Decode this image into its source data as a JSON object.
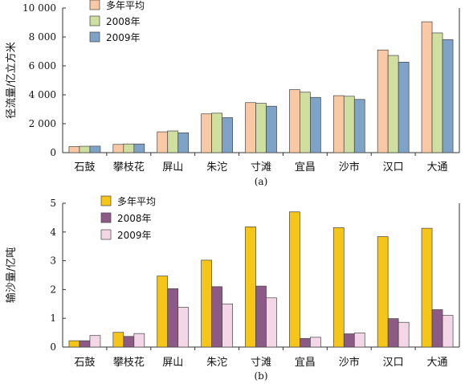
{
  "chart_data": [
    {
      "type": "bar",
      "panel_label": "(a)",
      "ylabel": "径流量/亿立方米",
      "ylim": [
        0,
        10000
      ],
      "yticks": [
        0,
        2000,
        4000,
        6000,
        8000,
        10000
      ],
      "ytick_labels": [
        "0",
        "2 000",
        "4 000",
        "6 000",
        "8 000",
        "10 000"
      ],
      "categories": [
        "石鼓",
        "攀枝花",
        "屏山",
        "朱沱",
        "寸滩",
        "宜昌",
        "沙市",
        "汉口",
        "大通"
      ],
      "legend_position": "top-left",
      "series": [
        {
          "name": "多年平均",
          "color": "#f9c9a5",
          "values": [
            420,
            570,
            1440,
            2680,
            3460,
            4360,
            3940,
            7100,
            9050
          ]
        },
        {
          "name": "2008年",
          "color": "#cfdfa0",
          "values": [
            440,
            600,
            1500,
            2730,
            3410,
            4180,
            3900,
            6720,
            8280
          ]
        },
        {
          "name": "2009年",
          "color": "#7fa3c6",
          "values": [
            450,
            600,
            1370,
            2420,
            3210,
            3820,
            3680,
            6260,
            7820
          ]
        }
      ]
    },
    {
      "type": "bar",
      "panel_label": "(b)",
      "ylabel": "输沙量/亿吨",
      "ylim": [
        0,
        5
      ],
      "yticks": [
        0,
        1,
        2,
        3,
        4,
        5
      ],
      "ytick_labels": [
        "0",
        "1",
        "2",
        "3",
        "4",
        "5"
      ],
      "categories": [
        "石鼓",
        "攀枝花",
        "屏山",
        "朱沱",
        "寸滩",
        "宜昌",
        "沙市",
        "汉口",
        "大通"
      ],
      "legend_position": "top-left",
      "series": [
        {
          "name": "多年平均",
          "color": "#f5c518",
          "values": [
            0.22,
            0.51,
            2.47,
            3.02,
            4.18,
            4.7,
            4.15,
            3.84,
            4.13
          ]
        },
        {
          "name": "2008年",
          "color": "#8c5a86",
          "values": [
            0.22,
            0.37,
            2.03,
            2.1,
            2.12,
            0.3,
            0.46,
            0.99,
            1.3
          ]
        },
        {
          "name": "2009年",
          "color": "#f4d7e6",
          "values": [
            0.4,
            0.47,
            1.38,
            1.5,
            1.71,
            0.34,
            0.49,
            0.86,
            1.1
          ]
        }
      ]
    }
  ]
}
